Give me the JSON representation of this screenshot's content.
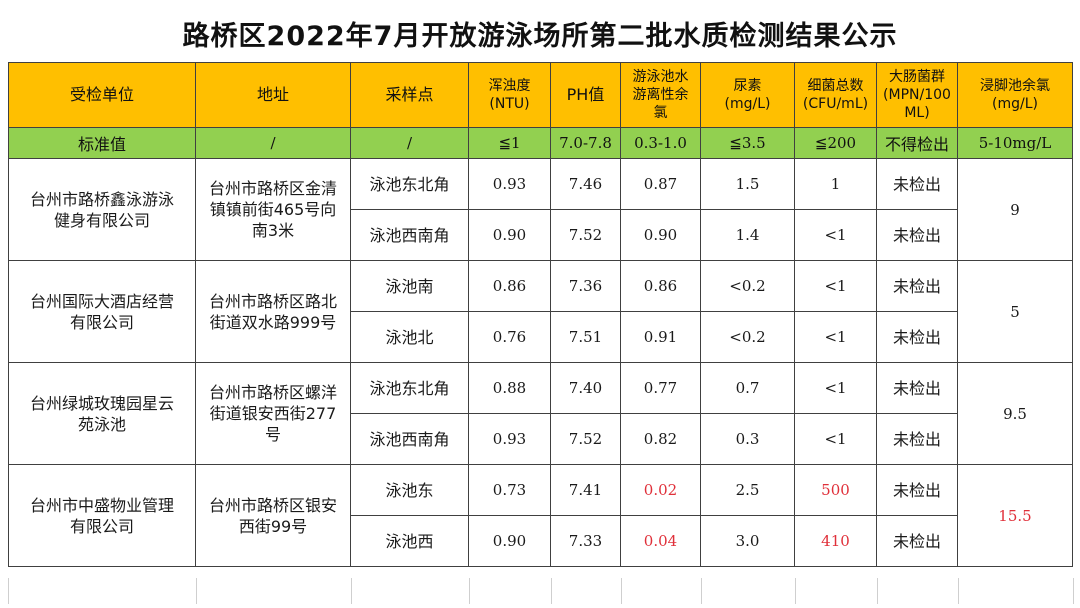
{
  "title": "路桥区2022年7月开放游泳场所第二批水质检测结果公示",
  "colors": {
    "header_bg": "#ffbf00",
    "standard_bg": "#92d050",
    "exceed_red": "#e0303a"
  },
  "headers": {
    "unit": "受检单位",
    "address": "地址",
    "sample_point": "采样点",
    "turbidity": [
      "浑浊度",
      "(NTU)"
    ],
    "ph": "PH值",
    "chlorine": [
      "游泳池水",
      "游离性余",
      "氯"
    ],
    "urea": [
      "尿素",
      "(mg/L)"
    ],
    "bacteria": [
      "细菌总数",
      "(CFU/mL)"
    ],
    "coliform": [
      "大肠菌群",
      "(MPN/100",
      "ML)"
    ],
    "footbath": [
      "浸脚池余氯",
      "(mg/L)"
    ]
  },
  "standard": {
    "label": "标准值",
    "address": "/",
    "sample_point": "/",
    "turbidity": "≦1",
    "ph": "7.0-7.8",
    "chlorine": "0.3-1.0",
    "urea": "≦3.5",
    "bacteria": "≦200",
    "coliform": "不得检出",
    "footbath": "5-10mg/L"
  },
  "units": [
    {
      "name": [
        "台州市路桥鑫泳游泳",
        "健身有限公司"
      ],
      "address": [
        "台州市路桥区金清",
        "镇镇前街465号向",
        "南3米"
      ],
      "footbath": "9",
      "rows": [
        {
          "point": "泳池东北角",
          "turbidity": "0.93",
          "ph": "7.46",
          "chlorine": "0.87",
          "urea": "1.5",
          "bacteria": "1",
          "coliform": "未检出"
        },
        {
          "point": "泳池西南角",
          "turbidity": "0.90",
          "ph": "7.52",
          "chlorine": "0.90",
          "urea": "1.4",
          "bacteria": "<1",
          "coliform": "未检出"
        }
      ]
    },
    {
      "name": [
        "台州国际大酒店经营",
        "有限公司"
      ],
      "address": [
        "台州市路桥区路北",
        "街道双水路999号"
      ],
      "footbath": "5",
      "rows": [
        {
          "point": "泳池南",
          "turbidity": "0.86",
          "ph": "7.36",
          "chlorine": "0.86",
          "urea": "<0.2",
          "bacteria": "<1",
          "coliform": "未检出"
        },
        {
          "point": "泳池北",
          "turbidity": "0.76",
          "ph": "7.51",
          "chlorine": "0.91",
          "urea": "<0.2",
          "bacteria": "<1",
          "coliform": "未检出"
        }
      ]
    },
    {
      "name": [
        "台州绿城玫瑰园星云",
        "苑泳池"
      ],
      "address": [
        "台州市路桥区螺洋",
        "街道银安西街277",
        "号"
      ],
      "footbath": "9.5",
      "rows": [
        {
          "point": "泳池东北角",
          "turbidity": "0.88",
          "ph": "7.40",
          "chlorine": "0.77",
          "urea": "0.7",
          "bacteria": "<1",
          "coliform": "未检出"
        },
        {
          "point": "泳池西南角",
          "turbidity": "0.93",
          "ph": "7.52",
          "chlorine": "0.82",
          "urea": "0.3",
          "bacteria": "<1",
          "coliform": "未检出"
        }
      ]
    },
    {
      "name": [
        "台州市中盛物业管理",
        "有限公司"
      ],
      "address": [
        "台州市路桥区银安",
        "西街99号"
      ],
      "footbath": "15.5",
      "rows": [
        {
          "point": "泳池东",
          "turbidity": "0.73",
          "ph": "7.41",
          "chlorine": "0.02",
          "urea": "2.5",
          "bacteria": "500",
          "coliform": "未检出"
        },
        {
          "point": "泳池西",
          "turbidity": "0.90",
          "ph": "7.33",
          "chlorine": "0.04",
          "urea": "3.0",
          "bacteria": "410",
          "coliform": "未检出"
        }
      ]
    }
  ]
}
